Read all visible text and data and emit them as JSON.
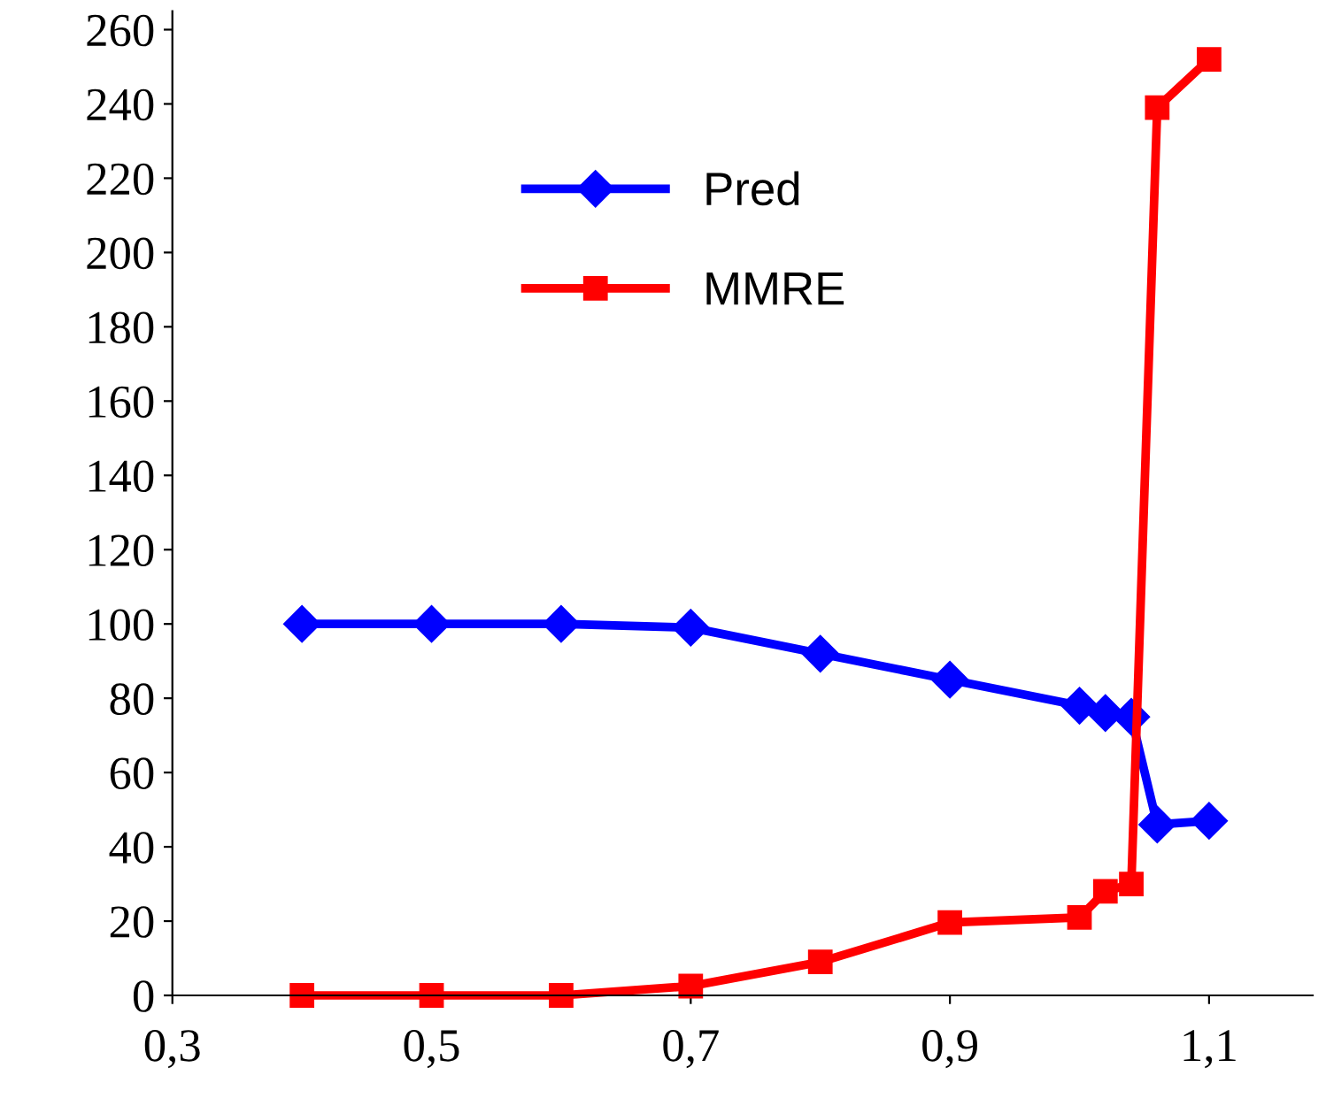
{
  "chart_data": {
    "type": "line",
    "legend": "top",
    "grid": false,
    "x": [
      0.4,
      0.5,
      0.6,
      0.7,
      0.8,
      0.9,
      1.0,
      1.02,
      1.04,
      1.06,
      1.1
    ],
    "series": [
      {
        "name": "Pred",
        "color": "#0000ff",
        "marker": "diamond",
        "values": [
          100,
          100,
          100,
          99,
          92,
          85,
          78,
          76,
          75,
          46,
          47
        ]
      },
      {
        "name": "MMRE",
        "color": "#ff0000",
        "marker": "square",
        "values": [
          0,
          0,
          0,
          2.5,
          9,
          19.6,
          21,
          28,
          30,
          239,
          252
        ]
      }
    ],
    "xlim": [
      0.3,
      1.18
    ],
    "ylim": [
      0,
      265
    ],
    "xticks": [
      {
        "value": 0.3,
        "label": "0,3"
      },
      {
        "value": 0.5,
        "label": "0,5"
      },
      {
        "value": 0.7,
        "label": "0,7"
      },
      {
        "value": 0.9,
        "label": "0,9"
      },
      {
        "value": 1.1,
        "label": "1,1"
      }
    ],
    "yticks": [
      0,
      20,
      40,
      60,
      80,
      100,
      120,
      140,
      160,
      180,
      200,
      220,
      240,
      260
    ]
  }
}
